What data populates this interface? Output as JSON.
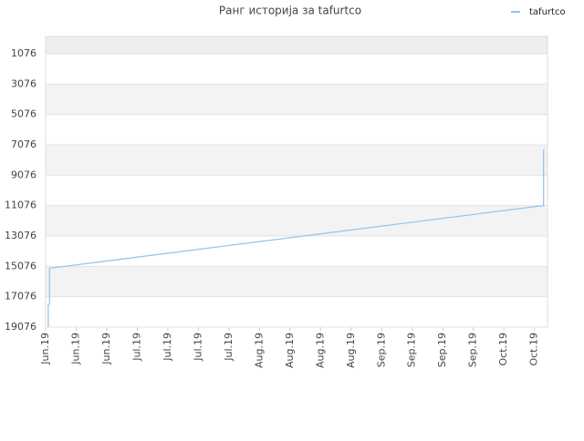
{
  "chart_data": {
    "type": "line",
    "title": "Ранг историја за tafurtco",
    "x": [
      0.6,
      0.6,
      0.9,
      0.9,
      114,
      114.1,
      114.1,
      114.3
    ],
    "series": [
      {
        "name": "tafurtco",
        "color": "#99c4ec",
        "values": [
          19076,
          17600,
          17550,
          15200,
          11076,
          11076,
          7400,
          7380
        ]
      }
    ],
    "xlim": [
      0,
      115
    ],
    "xticks": [
      {
        "value": 0,
        "label": "Jun.19"
      },
      {
        "value": 7,
        "label": "Jun.19"
      },
      {
        "value": 14,
        "label": "Jun.19"
      },
      {
        "value": 21,
        "label": "Jul.19"
      },
      {
        "value": 28,
        "label": "Jul.19"
      },
      {
        "value": 35,
        "label": "Jul.19"
      },
      {
        "value": 42,
        "label": "Jul.19"
      },
      {
        "value": 49,
        "label": "Aug.19"
      },
      {
        "value": 56,
        "label": "Aug.19"
      },
      {
        "value": 63,
        "label": "Aug.19"
      },
      {
        "value": 70,
        "label": "Aug.19"
      },
      {
        "value": 77,
        "label": "Sep.19"
      },
      {
        "value": 84,
        "label": "Sep.19"
      },
      {
        "value": 91,
        "label": "Sep.19"
      },
      {
        "value": 98,
        "label": "Sep.19"
      },
      {
        "value": 105,
        "label": "Oct.19"
      },
      {
        "value": 112,
        "label": "Oct.19"
      }
    ],
    "ylim": [
      19076,
      -64
    ],
    "yticks": [
      1076,
      3076,
      5076,
      7076,
      9076,
      11076,
      13076,
      15076,
      17076,
      19076
    ],
    "grid": true,
    "legend": "top-right"
  }
}
